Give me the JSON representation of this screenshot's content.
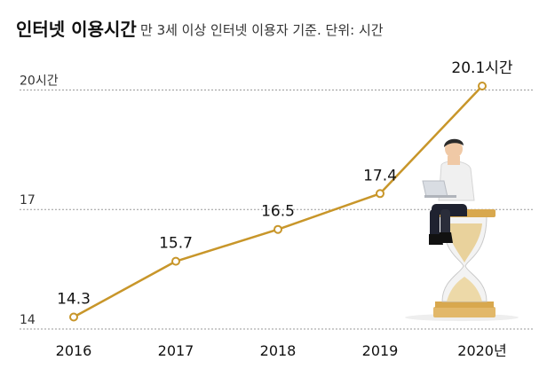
{
  "chart_data": {
    "type": "line",
    "title": "인터넷 이용시간",
    "subtitle": "만 3세 이상 인터넷 이용자 기준. 단위: 시간",
    "x": [
      "2016",
      "2017",
      "2018",
      "2019",
      "2020년"
    ],
    "values": [
      14.3,
      15.7,
      16.5,
      17.4,
      20.1
    ],
    "data_labels": [
      "14.3",
      "15.7",
      "16.5",
      "17.4",
      "20.1시간"
    ],
    "y_ticks": [
      {
        "value": 14,
        "label": "14"
      },
      {
        "value": 17,
        "label": "17"
      },
      {
        "value": 20,
        "label": "20시간"
      }
    ],
    "ylim": [
      14,
      20.1
    ],
    "grid": true,
    "line_color": "#c8962a",
    "grid_color": "#9a9a9a"
  }
}
